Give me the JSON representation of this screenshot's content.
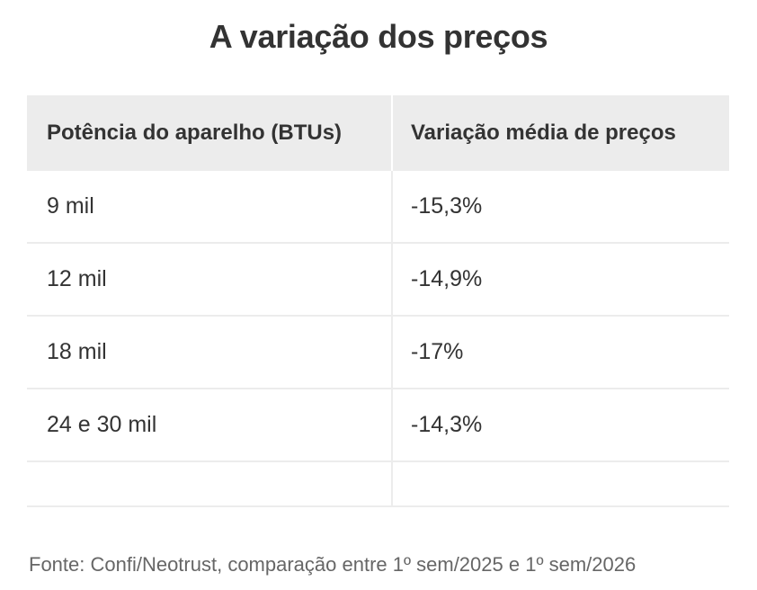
{
  "title": "A variação dos preços",
  "chart_data": {
    "type": "table",
    "title": "A variação dos preços",
    "columns": [
      "Potência do aparelho (BTUs)",
      "Variação média de preços"
    ],
    "rows": [
      [
        "9 mil",
        "-15,3%"
      ],
      [
        "12 mil",
        "-14,9%"
      ],
      [
        "18 mil",
        "-17%"
      ],
      [
        "24 e 30 mil",
        "-14,3%"
      ]
    ]
  },
  "source": "Fonte: Confi/Neotrust, comparação entre 1º sem/2025 e 1º sem/2026"
}
